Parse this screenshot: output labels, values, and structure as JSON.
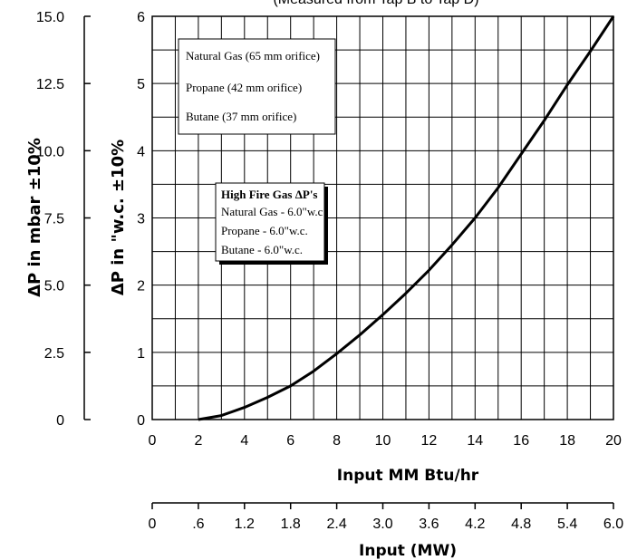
{
  "chart_data": {
    "type": "line",
    "title": "(Measured from Tap B to Tap D)",
    "xlabel": "Input MM Btu/hr",
    "x2label": "Input (MW)",
    "ylabel": "ΔP in \"w.c. ±10%",
    "y2label": "ΔP in mbar ±10%",
    "xlim": [
      0,
      20
    ],
    "ylim": [
      0,
      6
    ],
    "grid": true,
    "x_ticks": [
      "0",
      "2",
      "4",
      "6",
      "8",
      "10",
      "12",
      "14",
      "16",
      "18",
      "20"
    ],
    "y_ticks": [
      "0",
      "1",
      "2",
      "3",
      "4",
      "5",
      "6"
    ],
    "mbar_ticks": [
      "0",
      "2.5",
      "5.0",
      "7.5",
      "10.0",
      "12.5",
      "15.0"
    ],
    "mw_ticks": [
      "0",
      ".6",
      "1.2",
      "1.8",
      "2.4",
      "3.0",
      "3.6",
      "4.2",
      "4.8",
      "5.4",
      "6.0"
    ],
    "series": [
      {
        "x": [
          2,
          3,
          4,
          5,
          6,
          7,
          8,
          9,
          10,
          11,
          12,
          13,
          14,
          15,
          16,
          17,
          18,
          19,
          20
        ],
        "values": [
          0,
          0.06,
          0.18,
          0.33,
          0.5,
          0.72,
          0.98,
          1.26,
          1.56,
          1.88,
          2.22,
          2.6,
          3.0,
          3.45,
          3.95,
          4.45,
          4.98,
          5.48,
          6.0
        ]
      }
    ],
    "legend_box": [
      "Natural Gas (65 mm orifice)",
      "Propane (42 mm orifice)",
      "Butane (37 mm orifice)"
    ],
    "info_box": {
      "title": "High Fire Gas ΔP's",
      "lines": [
        "Natural Gas - 6.0\"w.c",
        "Propane - 6.0\"w.c.",
        "Butane - 6.0\"w.c."
      ]
    }
  }
}
